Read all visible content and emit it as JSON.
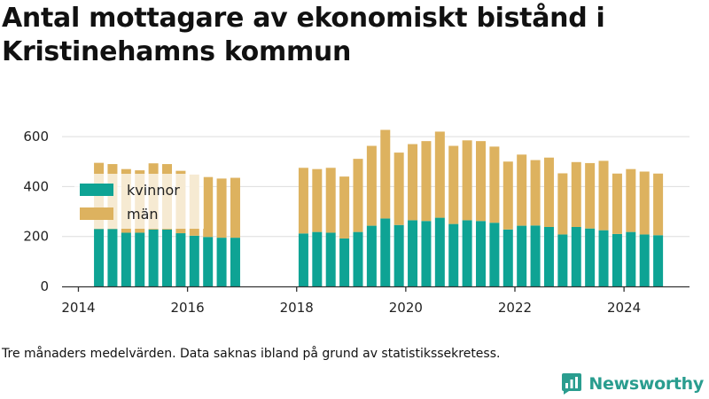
{
  "page": {
    "title": "Antal mottagare av ekonomiskt bistånd i Kristinehamns kommun",
    "note": "Tre månaders medelvärden. Data saknas ibland på grund av statistikssekretess.",
    "brand": "Newsworthy",
    "brand_icon": "newsworthy-logo-icon"
  },
  "colors": {
    "kvinnor": "#0ea394",
    "man": "#ddb25f",
    "grid": "#dddddd",
    "axis": "#333333",
    "text": "#222222",
    "brand": "#2a9d8f"
  },
  "chart_data": {
    "type": "bar",
    "stacked": true,
    "title": "Antal mottagare av ekonomiskt bistånd i Kristinehamns kommun",
    "x_ticks": [
      2014,
      2016,
      2018,
      2020,
      2022,
      2024
    ],
    "y_ticks": [
      0,
      200,
      400,
      600
    ],
    "xlim": [
      2013.7,
      2025.2
    ],
    "ylim": [
      0,
      650
    ],
    "grid": true,
    "legend_position": "top-left",
    "x": [
      2014.375,
      2014.625,
      2014.875,
      2015.125,
      2015.375,
      2015.625,
      2015.875,
      2016.125,
      2016.375,
      2016.625,
      2016.875,
      2018.125,
      2018.375,
      2018.625,
      2018.875,
      2019.125,
      2019.375,
      2019.625,
      2019.875,
      2020.125,
      2020.375,
      2020.625,
      2020.875,
      2021.125,
      2021.375,
      2021.625,
      2021.875,
      2022.125,
      2022.375,
      2022.625,
      2022.875,
      2023.125,
      2023.375,
      2023.625,
      2023.875,
      2024.125,
      2024.375,
      2024.625
    ],
    "series": [
      {
        "name": "kvinnor",
        "values": [
          230,
          230,
          215,
          215,
          228,
          228,
          213,
          203,
          198,
          195,
          195,
          212,
          218,
          215,
          192,
          218,
          243,
          272,
          246,
          265,
          262,
          275,
          250,
          265,
          262,
          255,
          228,
          243,
          244,
          238,
          208,
          238,
          232,
          225,
          210,
          218,
          208,
          205
        ]
      },
      {
        "name": "män",
        "values": [
          265,
          260,
          255,
          250,
          265,
          262,
          250,
          245,
          240,
          237,
          240,
          263,
          252,
          260,
          248,
          293,
          320,
          355,
          290,
          305,
          320,
          345,
          313,
          320,
          320,
          305,
          272,
          285,
          262,
          278,
          245,
          260,
          262,
          278,
          242,
          252,
          252,
          247
        ]
      }
    ]
  }
}
